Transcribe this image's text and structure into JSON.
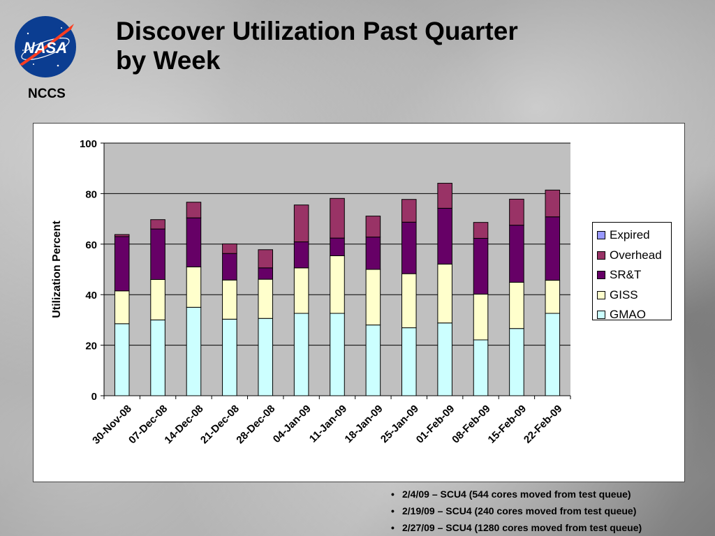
{
  "logo": {
    "text": "NASA",
    "caption": "NCCS"
  },
  "title_line1": "Discover Utilization Past Quarter",
  "title_line2": "by Week",
  "colors": {
    "expired": "#9999FF",
    "overhead": "#993366",
    "srt": "#660066",
    "giss": "#FFFFCC",
    "gmao": "#CCFFFF",
    "plot_bg": "#C0C0C0"
  },
  "chart_data": {
    "type": "bar",
    "stacked": true,
    "ylabel": "Utilization Percent",
    "xlabel": "",
    "ylim": [
      0,
      100
    ],
    "yticks": [
      0,
      20,
      40,
      60,
      80,
      100
    ],
    "grid": true,
    "legend_position": "right",
    "categories": [
      "30-Nov-08",
      "07-Dec-08",
      "14-Dec-08",
      "21-Dec-08",
      "28-Dec-08",
      "04-Jan-09",
      "11-Jan-09",
      "18-Jan-09",
      "25-Jan-09",
      "01-Feb-09",
      "08-Feb-09",
      "15-Feb-09",
      "22-Feb-09"
    ],
    "series": [
      {
        "name": "GMAO",
        "color": "#CCFFFF",
        "values": [
          28.5,
          30.0,
          35.0,
          30.3,
          30.6,
          32.6,
          32.6,
          28.0,
          26.9,
          28.8,
          22.1,
          26.6,
          32.6
        ]
      },
      {
        "name": "GISS",
        "color": "#FFFFCC",
        "values": [
          13.0,
          16.0,
          16.0,
          15.5,
          15.5,
          18.0,
          22.8,
          22.0,
          21.4,
          23.3,
          18.1,
          18.3,
          13.1
        ]
      },
      {
        "name": "SR&T",
        "color": "#660066",
        "values": [
          21.5,
          20.0,
          19.4,
          10.5,
          4.5,
          10.3,
          7.0,
          12.8,
          20.4,
          22.1,
          22.1,
          22.6,
          25.1
        ]
      },
      {
        "name": "Overhead",
        "color": "#993366",
        "values": [
          0.8,
          3.7,
          6.2,
          3.8,
          7.2,
          14.6,
          15.7,
          8.3,
          9.0,
          9.9,
          6.3,
          10.3,
          10.6
        ]
      },
      {
        "name": "Expired",
        "color": "#9999FF",
        "values": [
          0,
          0,
          0,
          0,
          0,
          0,
          0,
          0,
          0,
          0,
          0,
          0,
          0
        ]
      }
    ],
    "legend_order": [
      "Expired",
      "Overhead",
      "SR&T",
      "GISS",
      "GMAO"
    ]
  },
  "notes": [
    "2/4/09 – SCU4 (544 cores moved from test queue)",
    "2/19/09 – SCU4 (240 cores moved from test queue)",
    "2/27/09 – SCU4 (1280 cores moved from test queue)"
  ]
}
